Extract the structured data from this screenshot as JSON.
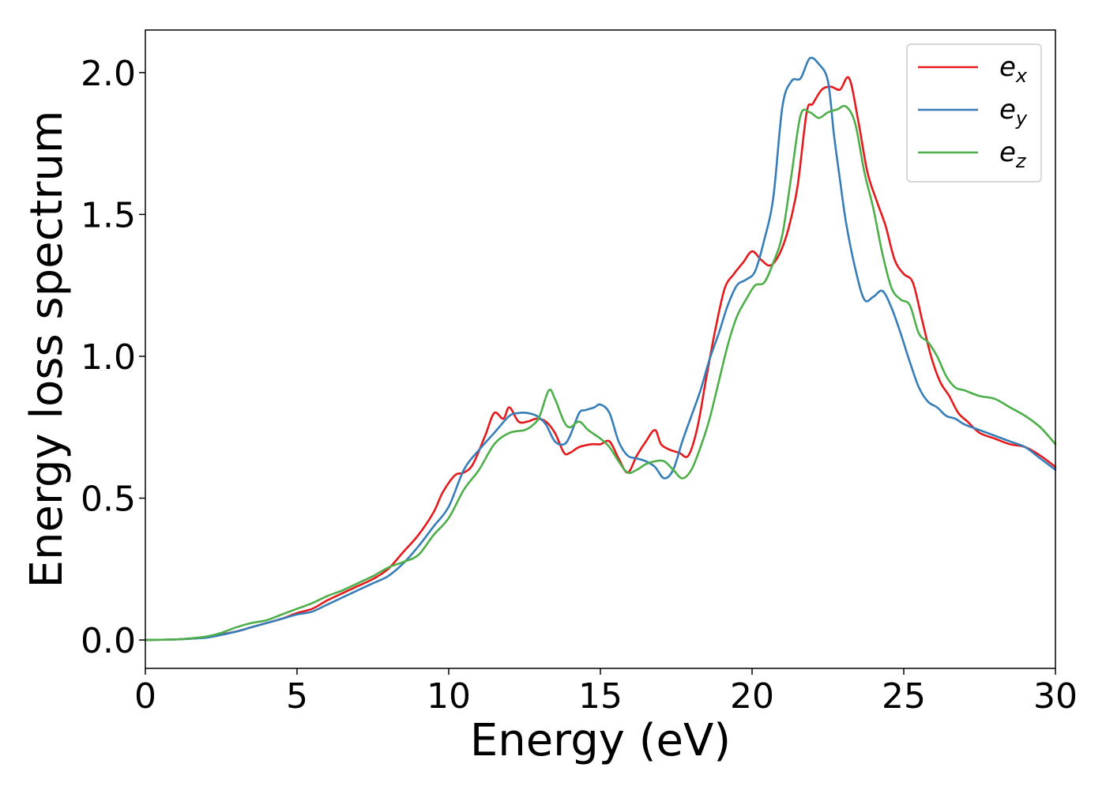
{
  "chart_data": {
    "type": "line",
    "title": "",
    "xlabel": "Energy (eV)",
    "ylabel": "Energy loss spectrum",
    "xlim": [
      0,
      30
    ],
    "ylim": [
      -0.1,
      2.15
    ],
    "xticks": [
      0,
      5,
      10,
      15,
      20,
      25,
      30
    ],
    "xtick_labels": [
      "0",
      "5",
      "10",
      "15",
      "20",
      "25",
      "30"
    ],
    "yticks": [
      0.0,
      0.5,
      1.0,
      1.5,
      2.0
    ],
    "ytick_labels": [
      "0.0",
      "0.5",
      "1.0",
      "1.5",
      "2.0"
    ],
    "grid": false,
    "legend_position": "top-right",
    "series": [
      {
        "name": "e_x",
        "legend_base": "e",
        "legend_sub": "x",
        "color": "#e41a1c",
        "x": [
          0,
          1,
          1.5,
          2,
          2.5,
          3,
          3.5,
          4,
          4.5,
          5,
          5.5,
          6,
          6.5,
          7,
          7.5,
          8,
          8.5,
          9,
          9.5,
          9.8,
          10.2,
          10.5,
          10.8,
          11.2,
          11.5,
          11.8,
          12,
          12.3,
          12.6,
          12.9,
          13.2,
          13.5,
          13.8,
          14,
          14.3,
          14.7,
          15,
          15.3,
          15.6,
          15.9,
          16.2,
          16.5,
          16.8,
          17,
          17.3,
          17.6,
          17.9,
          18.2,
          18.5,
          18.8,
          19.1,
          19.4,
          19.7,
          20,
          20.3,
          20.6,
          20.9,
          21.2,
          21.5,
          21.8,
          22,
          22.3,
          22.6,
          22.9,
          23.2,
          23.5,
          23.8,
          24.1,
          24.4,
          24.7,
          25,
          25.3,
          25.6,
          25.9,
          26.2,
          26.5,
          26.8,
          27.1,
          27.5,
          28,
          28.5,
          29,
          29.5,
          30
        ],
        "y": [
          0,
          0.002,
          0.005,
          0.01,
          0.02,
          0.03,
          0.045,
          0.06,
          0.075,
          0.095,
          0.11,
          0.14,
          0.165,
          0.19,
          0.215,
          0.25,
          0.31,
          0.37,
          0.45,
          0.52,
          0.58,
          0.59,
          0.62,
          0.72,
          0.8,
          0.78,
          0.82,
          0.77,
          0.77,
          0.78,
          0.77,
          0.73,
          0.66,
          0.66,
          0.68,
          0.69,
          0.69,
          0.7,
          0.64,
          0.59,
          0.65,
          0.7,
          0.74,
          0.69,
          0.67,
          0.66,
          0.65,
          0.75,
          0.93,
          1.1,
          1.24,
          1.29,
          1.33,
          1.37,
          1.34,
          1.32,
          1.36,
          1.45,
          1.6,
          1.86,
          1.89,
          1.94,
          1.95,
          1.94,
          1.98,
          1.83,
          1.65,
          1.55,
          1.46,
          1.34,
          1.29,
          1.26,
          1.13,
          1.0,
          0.91,
          0.86,
          0.8,
          0.77,
          0.73,
          0.71,
          0.69,
          0.68,
          0.65,
          0.61
        ]
      },
      {
        "name": "e_y",
        "legend_base": "e",
        "legend_sub": "y",
        "color": "#377eb8",
        "x": [
          0,
          1,
          1.5,
          2,
          2.5,
          3,
          3.5,
          4,
          4.5,
          5,
          5.5,
          6,
          6.5,
          7,
          7.5,
          8,
          8.5,
          9,
          9.5,
          10,
          10.5,
          11,
          11.5,
          12,
          12.3,
          12.6,
          12.9,
          13.2,
          13.5,
          13.8,
          14,
          14.3,
          14.5,
          14.8,
          15,
          15.3,
          15.6,
          15.9,
          16.2,
          16.5,
          16.8,
          17.1,
          17.4,
          17.7,
          18,
          18.3,
          18.6,
          18.9,
          19.2,
          19.5,
          19.8,
          20.1,
          20.4,
          20.7,
          21,
          21.3,
          21.6,
          21.9,
          22.2,
          22.5,
          22.7,
          22.9,
          23.1,
          23.4,
          23.7,
          24,
          24.3,
          24.6,
          24.9,
          25.2,
          25.5,
          25.8,
          26.1,
          26.4,
          26.7,
          27,
          27.5,
          28,
          28.5,
          29,
          29.5,
          30
        ],
        "y": [
          0,
          0.002,
          0.005,
          0.008,
          0.018,
          0.03,
          0.045,
          0.06,
          0.075,
          0.09,
          0.1,
          0.125,
          0.15,
          0.175,
          0.2,
          0.225,
          0.27,
          0.33,
          0.4,
          0.47,
          0.6,
          0.67,
          0.73,
          0.79,
          0.8,
          0.8,
          0.79,
          0.76,
          0.7,
          0.69,
          0.72,
          0.8,
          0.81,
          0.82,
          0.83,
          0.8,
          0.7,
          0.65,
          0.64,
          0.63,
          0.61,
          0.57,
          0.6,
          0.7,
          0.79,
          0.88,
          0.99,
          1.08,
          1.18,
          1.25,
          1.27,
          1.3,
          1.41,
          1.56,
          1.88,
          1.97,
          1.98,
          2.05,
          2.03,
          1.97,
          1.78,
          1.62,
          1.47,
          1.31,
          1.2,
          1.21,
          1.23,
          1.17,
          1.08,
          0.98,
          0.89,
          0.84,
          0.82,
          0.79,
          0.78,
          0.76,
          0.74,
          0.72,
          0.7,
          0.68,
          0.64,
          0.6
        ]
      },
      {
        "name": "e_z",
        "legend_base": "e",
        "legend_sub": "z",
        "color": "#4daf4a",
        "x": [
          0,
          1,
          1.5,
          2,
          2.5,
          3,
          3.5,
          4,
          4.5,
          5,
          5.5,
          6,
          6.5,
          7,
          7.5,
          8,
          8.5,
          9,
          9.5,
          10,
          10.5,
          11,
          11.5,
          12,
          12.5,
          12.8,
          13,
          13.3,
          13.5,
          13.8,
          14,
          14.3,
          14.6,
          15,
          15.3,
          15.6,
          15.9,
          16.2,
          16.5,
          16.8,
          17.1,
          17.4,
          17.7,
          18,
          18.3,
          18.6,
          18.9,
          19.2,
          19.5,
          19.8,
          20.1,
          20.4,
          20.7,
          21,
          21.3,
          21.6,
          21.9,
          22.2,
          22.5,
          22.8,
          23.1,
          23.4,
          23.7,
          24,
          24.3,
          24.6,
          24.9,
          25.2,
          25.5,
          25.8,
          26.1,
          26.4,
          26.7,
          27,
          27.5,
          28,
          28.5,
          29,
          29.5,
          30
        ],
        "y": [
          0,
          0.002,
          0.006,
          0.012,
          0.025,
          0.045,
          0.06,
          0.07,
          0.09,
          0.11,
          0.13,
          0.155,
          0.175,
          0.2,
          0.225,
          0.255,
          0.275,
          0.3,
          0.37,
          0.43,
          0.53,
          0.6,
          0.69,
          0.73,
          0.74,
          0.76,
          0.79,
          0.88,
          0.85,
          0.77,
          0.75,
          0.77,
          0.74,
          0.71,
          0.68,
          0.63,
          0.59,
          0.6,
          0.62,
          0.63,
          0.63,
          0.6,
          0.57,
          0.6,
          0.68,
          0.78,
          0.91,
          1.04,
          1.14,
          1.2,
          1.25,
          1.26,
          1.33,
          1.43,
          1.64,
          1.85,
          1.86,
          1.84,
          1.86,
          1.87,
          1.88,
          1.82,
          1.65,
          1.52,
          1.36,
          1.24,
          1.2,
          1.18,
          1.08,
          1.05,
          1.0,
          0.93,
          0.89,
          0.88,
          0.86,
          0.85,
          0.82,
          0.79,
          0.75,
          0.69
        ]
      }
    ]
  }
}
